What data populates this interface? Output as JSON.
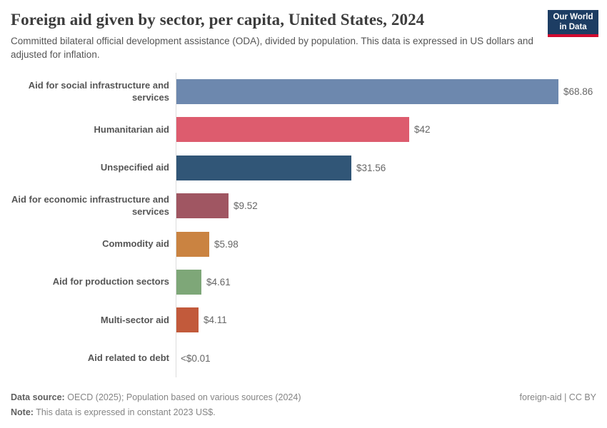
{
  "header": {
    "title": "Foreign aid given by sector, per capita, United States, 2024",
    "subtitle": "Committed bilateral official development assistance (ODA), divided by population. This data is expressed in US dollars and adjusted for inflation.",
    "logo": {
      "line1": "Our World",
      "line2": "in Data"
    }
  },
  "colors": {
    "logo_bg": "#1d3d63",
    "logo_stripe": "#d10a2f",
    "axis_line": "#dcdcdc",
    "category_text": "#555555",
    "value_text": "#666666"
  },
  "chart_data": {
    "type": "bar",
    "orientation": "horizontal",
    "title": "Foreign aid given by sector, per capita, United States, 2024",
    "xlabel": "",
    "ylabel": "",
    "unit": "constant 2023 US$ per capita",
    "xlim": [
      0,
      68.86
    ],
    "grid": false,
    "legend": "none",
    "categories": [
      "Aid for social infrastructure and services",
      "Humanitarian aid",
      "Unspecified aid",
      "Aid for economic infrastructure and services",
      "Commodity aid",
      "Aid for production sectors",
      "Multi-sector aid",
      "Aid related to debt"
    ],
    "values": [
      68.86,
      42,
      31.56,
      9.52,
      5.98,
      4.61,
      4.11,
      0.01
    ],
    "value_labels": [
      "$68.86",
      "$42",
      "$31.56",
      "$9.52",
      "$5.98",
      "$4.61",
      "$4.11",
      "<$0.01"
    ],
    "bar_colors": [
      "#6d88ae",
      "#dd5c6e",
      "#315677",
      "#a05662",
      "#ca8341",
      "#7ea778",
      "#c25a3b",
      null
    ]
  },
  "footer": {
    "data_source_label": "Data source:",
    "data_source_text": "OECD (2025); Population based on various sources (2024)",
    "note_label": "Note:",
    "note_text": "This data is expressed in constant 2023 US$.",
    "license": "foreign-aid | CC BY"
  }
}
